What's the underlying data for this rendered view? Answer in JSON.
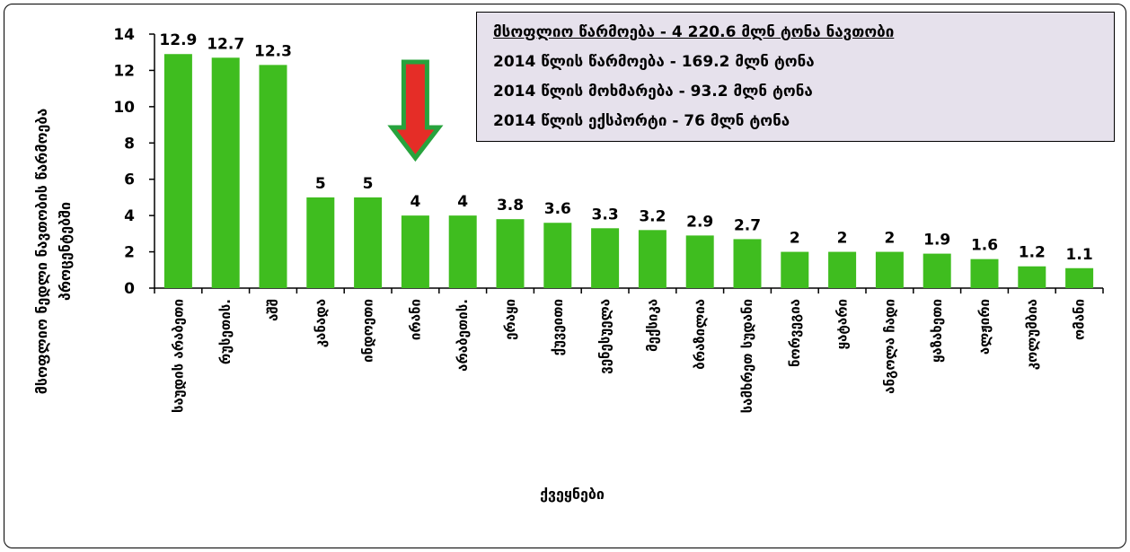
{
  "chart_data": {
    "type": "bar",
    "categories": [
      "საუდის არაბეთი",
      "რუსეთის.",
      "აშშ",
      "კანადა",
      "ინდოეთი",
      "ირანი",
      "არაბეთის.",
      "ერაყი",
      "ქუვეითი",
      "ვენესუელა",
      "მექსიკა",
      "ბრაზილია",
      "სამხრეთ სუდანი",
      "ნორვეგია",
      "ყატარი",
      "ანგოლა ჩადი",
      "ყაზახეთი",
      "ალჟირი",
      "კოლუმბია",
      "ომანი"
    ],
    "values": [
      12.9,
      12.7,
      12.3,
      5,
      5,
      4,
      4,
      3.8,
      3.6,
      3.3,
      3.2,
      2.9,
      2.7,
      2,
      2,
      2,
      1.9,
      1.6,
      1.2,
      1.1
    ],
    "value_labels": [
      "12.9",
      "12.7",
      "12.3",
      "5",
      "5",
      "4",
      "4",
      "3.8",
      "3.6",
      "3.3",
      "3.2",
      "2.9",
      "2.7",
      "2",
      "2",
      "2",
      "1.9",
      "1.6",
      "1.2",
      "1.1"
    ],
    "ylim": [
      0,
      14
    ],
    "yticks": [
      "0",
      "2",
      "4",
      "6",
      "8",
      "10",
      "12",
      "14"
    ],
    "ylabel_line1": "მსოფლიო ნედლი ნავთობის წარმოება",
    "ylabel_line2": "პროცენტებში",
    "xlabel": "ქვეყნები",
    "grid": false,
    "highlight_index": 5,
    "colors": {
      "bar": "#3fbd1f",
      "arrow_fill": "#e52d27",
      "arrow_stroke": "#27a33d",
      "box_bg": "#e6e1ec"
    }
  },
  "info_box": {
    "line1": "მსოფლიო წარმოება - 4 220.6 მლნ ტონა ნავთობი",
    "line2": "2014 წლის წარმოება - 169.2 მლნ ტონა",
    "line3": "2014 წლის მოხმარება - 93.2 მლნ ტონა",
    "line4": "2014 წლის ექსპორტი - 76 მლნ ტონა"
  }
}
